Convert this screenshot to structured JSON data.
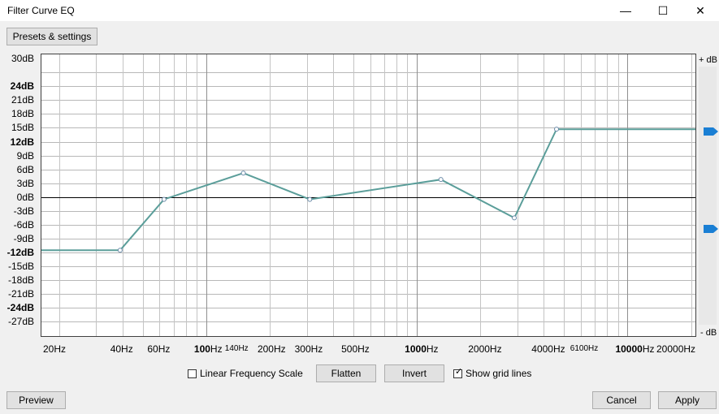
{
  "window": {
    "title": "Filter Curve EQ",
    "minimize_glyph": "—",
    "maximize_glyph": "☐",
    "close_glyph": "✕"
  },
  "toolbar": {
    "presets_label": "Presets & settings"
  },
  "y_axis": {
    "labels": [
      {
        "text": "30dB",
        "db": 30,
        "bold": false
      },
      {
        "text": "24dB",
        "db": 24,
        "bold": true
      },
      {
        "text": "21dB",
        "db": 21,
        "bold": false
      },
      {
        "text": "18dB",
        "db": 18,
        "bold": false
      },
      {
        "text": "15dB",
        "db": 15,
        "bold": false
      },
      {
        "text": "12dB",
        "db": 12,
        "bold": true
      },
      {
        "text": "9dB",
        "db": 9,
        "bold": false
      },
      {
        "text": "6dB",
        "db": 6,
        "bold": false
      },
      {
        "text": "3dB",
        "db": 3,
        "bold": false
      },
      {
        "text": "0dB",
        "db": 0,
        "bold": false
      },
      {
        "text": "-3dB",
        "db": -3,
        "bold": false
      },
      {
        "text": "-6dB",
        "db": -6,
        "bold": false
      },
      {
        "text": "-9dB",
        "db": -9,
        "bold": false
      },
      {
        "text": "-12dB",
        "db": -12,
        "bold": true
      },
      {
        "text": "-15dB",
        "db": -15,
        "bold": false
      },
      {
        "text": "-18dB",
        "db": -18,
        "bold": false
      },
      {
        "text": "-21dB",
        "db": -21,
        "bold": false
      },
      {
        "text": "-24dB",
        "db": -24,
        "bold": true
      },
      {
        "text": "-27dB",
        "db": -27,
        "bold": false
      }
    ]
  },
  "x_axis": {
    "labels": [
      {
        "text": "20Hz",
        "hz": 20,
        "bold": false,
        "small": false
      },
      {
        "text": "40Hz",
        "hz": 40,
        "bold": false,
        "small": false
      },
      {
        "text": "60Hz",
        "hz": 60,
        "bold": false,
        "small": false
      },
      {
        "text": "100",
        "suffix": "Hz",
        "hz": 100,
        "bold": true,
        "small": false
      },
      {
        "text": "140Hz",
        "hz": 140,
        "bold": false,
        "small": true
      },
      {
        "text": "200Hz",
        "hz": 200,
        "bold": false,
        "small": false
      },
      {
        "text": "300Hz",
        "hz": 300,
        "bold": false,
        "small": false
      },
      {
        "text": "500Hz",
        "hz": 500,
        "bold": false,
        "small": false
      },
      {
        "text": "1000",
        "suffix": "Hz",
        "hz": 1000,
        "bold": true,
        "small": false
      },
      {
        "text": "2000Hz",
        "hz": 2000,
        "bold": false,
        "small": false
      },
      {
        "text": "4000Hz",
        "hz": 4000,
        "bold": false,
        "small": false
      },
      {
        "text": "6100Hz",
        "hz": 6100,
        "bold": false,
        "small": true
      },
      {
        "text": "10000",
        "suffix": "Hz",
        "hz": 10000,
        "bold": true,
        "small": false
      },
      {
        "text": "20000Hz",
        "hz": 20000,
        "bold": false,
        "small": false
      }
    ]
  },
  "slider": {
    "top_label": "+ dB",
    "bottom_label": "- dB",
    "accent": "#1a7fd4"
  },
  "curve": {
    "color": "#5b9e9a",
    "control_points": [
      {
        "hz": 39,
        "db": -11.5
      },
      {
        "hz": 63,
        "db": -0.5
      },
      {
        "hz": 150,
        "db": 5.2
      },
      {
        "hz": 310,
        "db": -0.5
      },
      {
        "hz": 1300,
        "db": 3.8
      },
      {
        "hz": 2900,
        "db": -4.5
      },
      {
        "hz": 4600,
        "db": 14.7
      }
    ],
    "start_db": -11.5,
    "end_db": 14.7
  },
  "controls": {
    "linear_label": "Linear Frequency Scale",
    "linear_checked": false,
    "flatten_label": "Flatten",
    "invert_label": "Invert",
    "grid_label": "Show grid lines",
    "grid_checked": true,
    "check_glyph": "✓"
  },
  "footer": {
    "preview_label": "Preview",
    "cancel_label": "Cancel",
    "apply_label": "Apply"
  }
}
